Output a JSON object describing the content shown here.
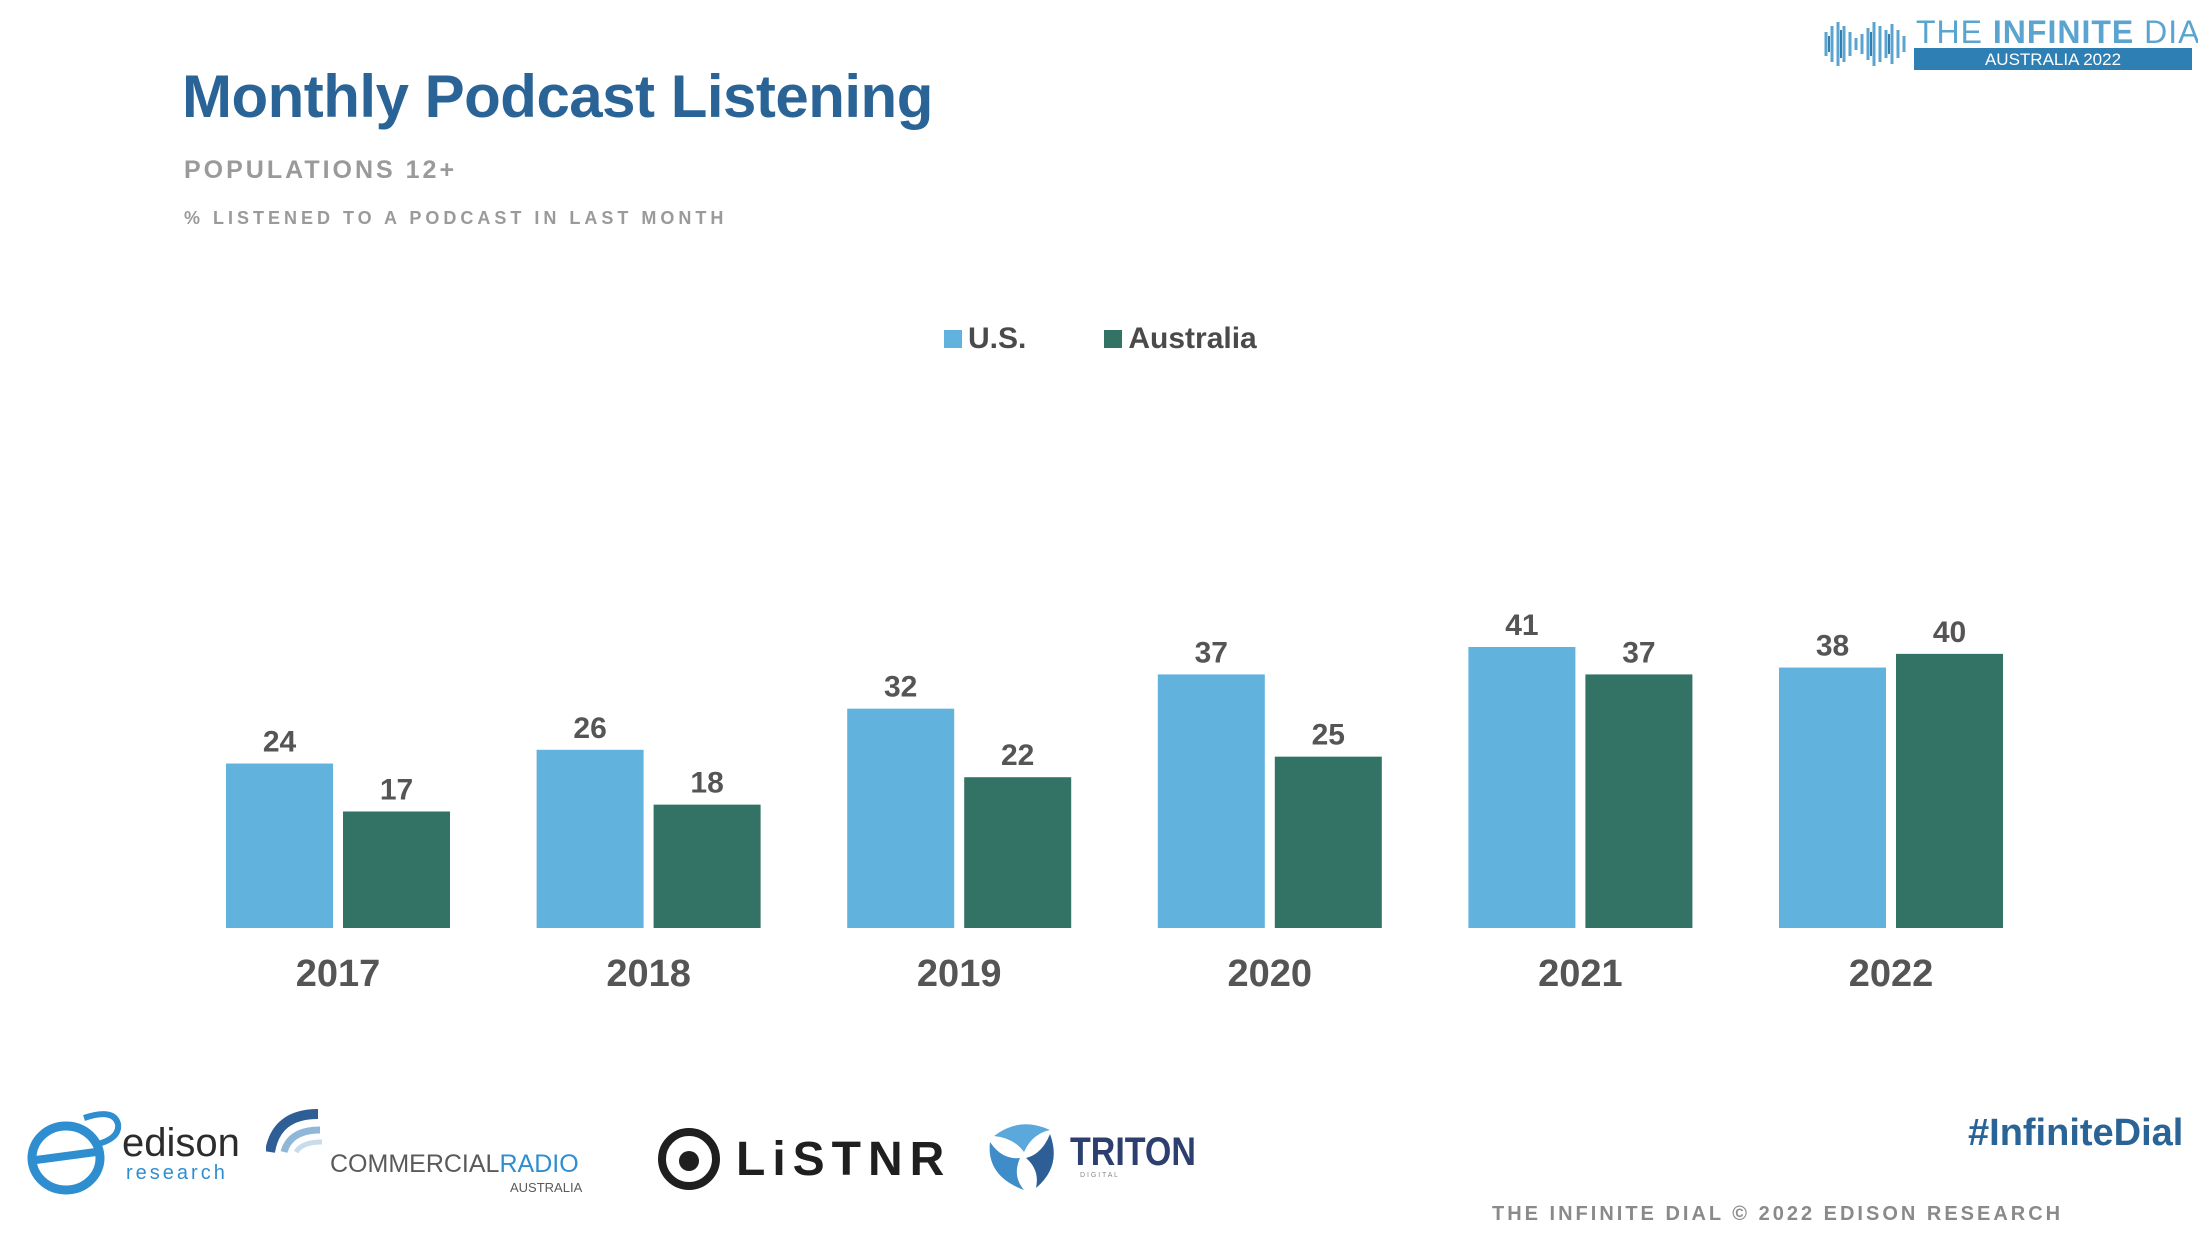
{
  "header": {
    "logo_main_prefix": "THE ",
    "logo_main_bold": "INFINITE",
    "logo_main_suffix": " DIAL",
    "logo_sub": "AUSTRALIA 2022"
  },
  "chart_data": {
    "type": "bar",
    "title": "Monthly Podcast Listening",
    "subtitle": "POPULATIONS 12+",
    "ylabel": "% LISTENED TO A PODCAST IN LAST MONTH",
    "categories": [
      "2017",
      "2018",
      "2019",
      "2020",
      "2021",
      "2022"
    ],
    "series": [
      {
        "name": "U.S.",
        "color": "#62b2de",
        "values": [
          24,
          26,
          32,
          37,
          41,
          38
        ]
      },
      {
        "name": "Australia",
        "color": "#337366",
        "values": [
          17,
          18,
          22,
          25,
          37,
          40
        ]
      }
    ],
    "ylim": [
      0,
      41
    ],
    "grid": false,
    "legend_position": "top-center",
    "data_labels": true
  },
  "footer": {
    "edison_name": "edison",
    "edison_sub": "research",
    "commercial_a": "COMMERCIAL",
    "commercial_b": "RADIO",
    "commercial_sub": "AUSTRALIA",
    "listnr": "LiSTNR",
    "triton": "TRITON",
    "triton_sub": "D I G I T A L",
    "hashtag": "#InfiniteDial",
    "copyright": "THE INFINITE DIAL  © 2022 EDISON RESEARCH"
  },
  "colors": {
    "title": "#2a6496",
    "subtitle": "#9a9a9a",
    "us_bar": "#62b2de",
    "australia_bar": "#337366"
  }
}
